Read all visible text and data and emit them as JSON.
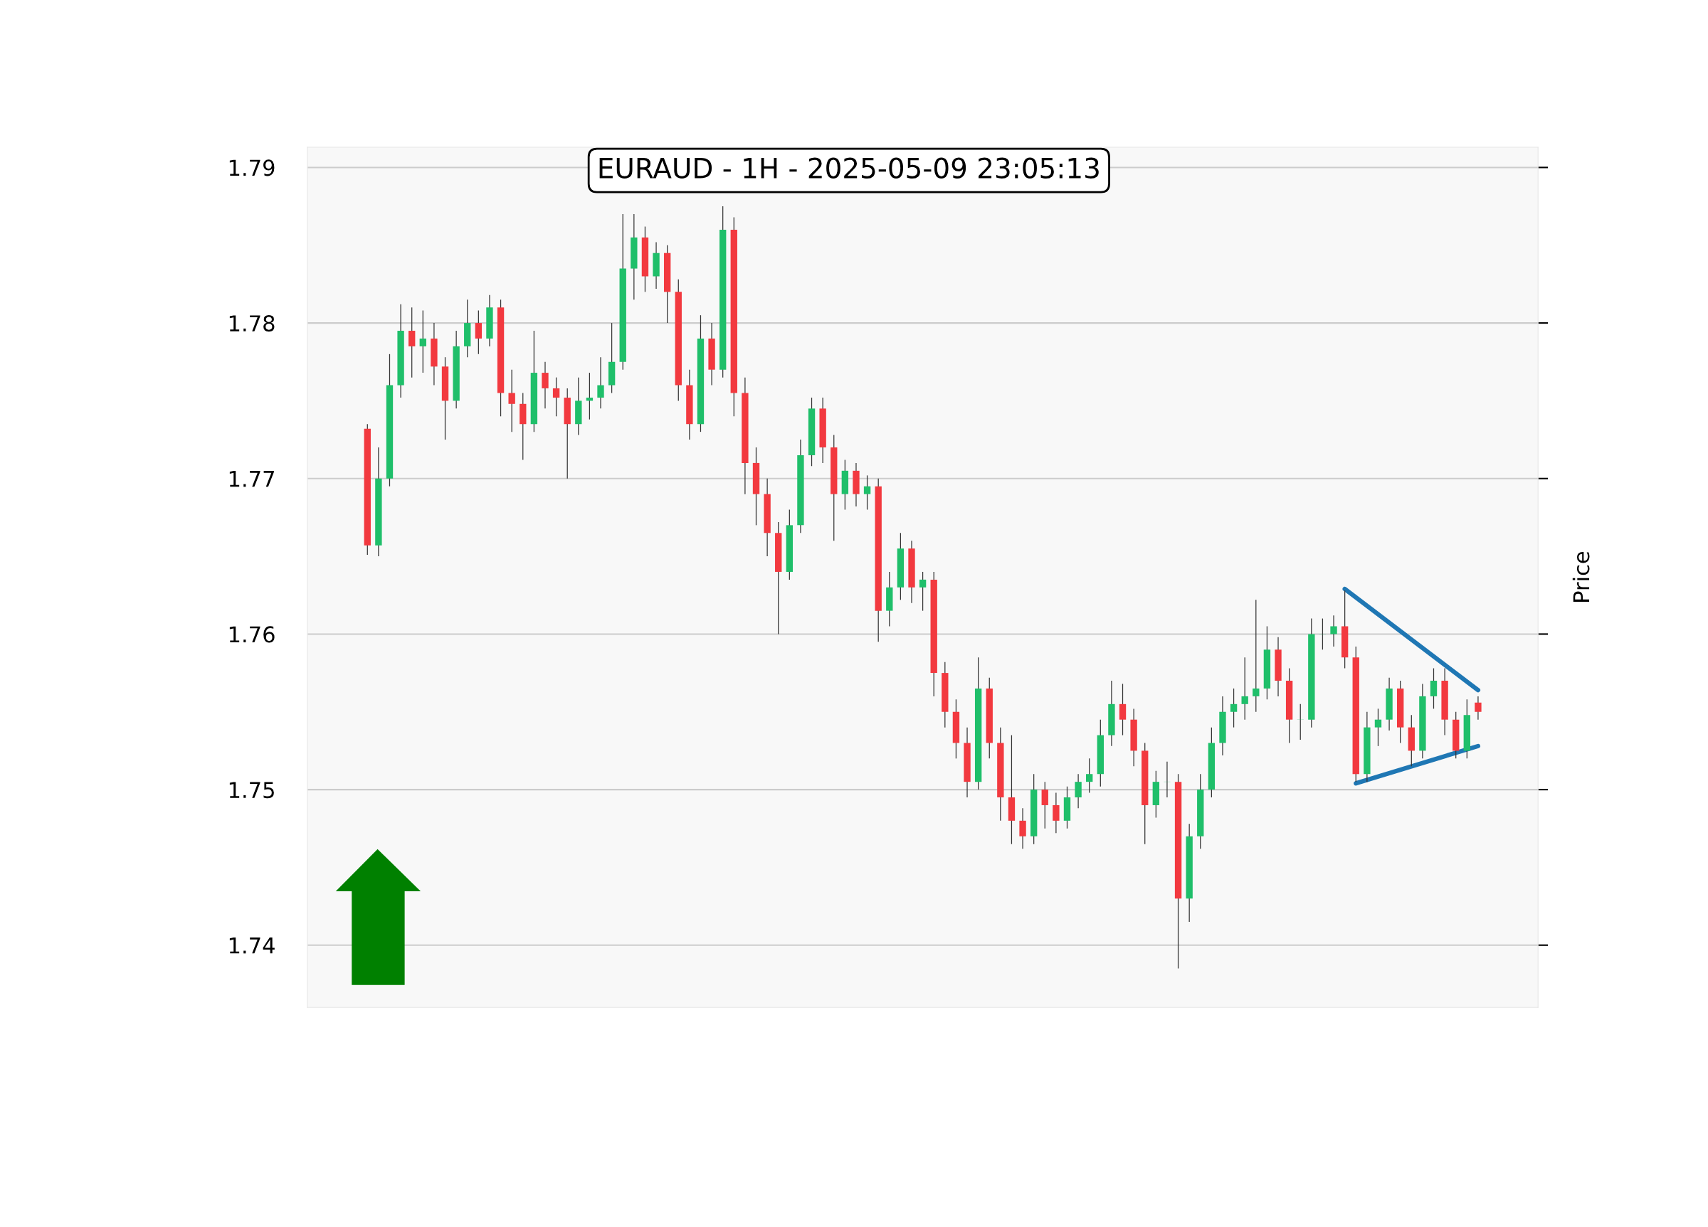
{
  "chart_data": {
    "type": "candlestick",
    "title": "EURAUD - 1H - 2025-05-09 23:05:13",
    "ylabel": "Price",
    "categories": [
      null,
      null,
      null,
      null,
      null,
      null,
      null,
      null,
      null,
      null,
      null,
      null,
      null,
      null,
      null,
      null,
      null,
      null,
      null,
      null,
      null,
      null,
      null,
      null,
      null,
      null,
      null,
      null,
      null,
      null,
      null,
      null,
      null,
      null,
      null,
      null,
      null,
      null,
      null,
      null,
      null,
      null,
      null,
      null,
      null,
      null,
      null,
      null,
      null,
      null,
      null,
      null,
      null,
      null,
      null,
      null,
      null,
      null,
      null,
      null,
      null,
      null,
      null,
      null,
      null,
      null,
      null,
      null,
      null,
      null,
      null,
      null,
      null,
      null,
      null,
      null,
      null,
      null,
      null,
      null,
      null,
      null,
      null,
      null,
      null,
      null,
      null,
      null,
      null,
      null,
      null,
      null,
      null,
      null,
      null,
      null,
      null,
      null,
      null,
      null,
      null
    ],
    "ohlc": [
      [
        1.7732,
        1.7735,
        1.7651,
        1.7657
      ],
      [
        1.7657,
        1.772,
        1.765,
        1.77
      ],
      [
        1.77,
        1.778,
        1.7695,
        1.776
      ],
      [
        1.776,
        1.7812,
        1.7752,
        1.7795
      ],
      [
        1.7795,
        1.781,
        1.7765,
        1.7785
      ],
      [
        1.7785,
        1.7808,
        1.7768,
        1.779
      ],
      [
        1.779,
        1.78,
        1.776,
        1.7772
      ],
      [
        1.7772,
        1.7778,
        1.7725,
        1.775
      ],
      [
        1.775,
        1.7795,
        1.7745,
        1.7785
      ],
      [
        1.7785,
        1.7815,
        1.7778,
        1.78
      ],
      [
        1.78,
        1.7808,
        1.778,
        1.779
      ],
      [
        1.779,
        1.7818,
        1.7785,
        1.781
      ],
      [
        1.781,
        1.7815,
        1.774,
        1.7755
      ],
      [
        1.7755,
        1.777,
        1.773,
        1.7748
      ],
      [
        1.7748,
        1.7755,
        1.7712,
        1.7735
      ],
      [
        1.7735,
        1.7795,
        1.773,
        1.7768
      ],
      [
        1.7768,
        1.7775,
        1.7745,
        1.7758
      ],
      [
        1.7758,
        1.7765,
        1.774,
        1.7752
      ],
      [
        1.7752,
        1.7758,
        1.77,
        1.7735
      ],
      [
        1.7735,
        1.7765,
        1.7728,
        1.775
      ],
      [
        1.775,
        1.7768,
        1.7738,
        1.7752
      ],
      [
        1.7752,
        1.7778,
        1.7745,
        1.776
      ],
      [
        1.776,
        1.78,
        1.7755,
        1.7775
      ],
      [
        1.7775,
        1.787,
        1.777,
        1.7835
      ],
      [
        1.7835,
        1.787,
        1.7815,
        1.7855
      ],
      [
        1.7855,
        1.7862,
        1.782,
        1.783
      ],
      [
        1.783,
        1.7852,
        1.7822,
        1.7845
      ],
      [
        1.7845,
        1.785,
        1.78,
        1.782
      ],
      [
        1.782,
        1.7828,
        1.775,
        1.776
      ],
      [
        1.776,
        1.777,
        1.7725,
        1.7735
      ],
      [
        1.7735,
        1.7805,
        1.773,
        1.779
      ],
      [
        1.779,
        1.78,
        1.776,
        1.777
      ],
      [
        1.777,
        1.7875,
        1.7765,
        1.786
      ],
      [
        1.786,
        1.7868,
        1.774,
        1.7755
      ],
      [
        1.7755,
        1.7765,
        1.769,
        1.771
      ],
      [
        1.771,
        1.772,
        1.767,
        1.769
      ],
      [
        1.769,
        1.77,
        1.765,
        1.7665
      ],
      [
        1.7665,
        1.7672,
        1.76,
        1.764
      ],
      [
        1.764,
        1.768,
        1.7635,
        1.767
      ],
      [
        1.767,
        1.7725,
        1.7665,
        1.7715
      ],
      [
        1.7715,
        1.7752,
        1.7708,
        1.7745
      ],
      [
        1.7745,
        1.7752,
        1.771,
        1.772
      ],
      [
        1.772,
        1.7728,
        1.766,
        1.769
      ],
      [
        1.769,
        1.7712,
        1.768,
        1.7705
      ],
      [
        1.7705,
        1.771,
        1.7682,
        1.769
      ],
      [
        1.769,
        1.7702,
        1.768,
        1.7695
      ],
      [
        1.7695,
        1.77,
        1.7595,
        1.7615
      ],
      [
        1.7615,
        1.764,
        1.7605,
        1.763
      ],
      [
        1.763,
        1.7665,
        1.7622,
        1.7655
      ],
      [
        1.7655,
        1.766,
        1.762,
        1.763
      ],
      [
        1.763,
        1.764,
        1.7615,
        1.7635
      ],
      [
        1.7635,
        1.764,
        1.756,
        1.7575
      ],
      [
        1.7575,
        1.7582,
        1.754,
        1.755
      ],
      [
        1.755,
        1.7558,
        1.752,
        1.753
      ],
      [
        1.753,
        1.754,
        1.7495,
        1.7505
      ],
      [
        1.7505,
        1.7585,
        1.75,
        1.7565
      ],
      [
        1.7565,
        1.7572,
        1.752,
        1.753
      ],
      [
        1.753,
        1.754,
        1.748,
        1.7495
      ],
      [
        1.7495,
        1.7535,
        1.7465,
        1.748
      ],
      [
        1.748,
        1.7488,
        1.7462,
        1.747
      ],
      [
        1.747,
        1.751,
        1.7465,
        1.75
      ],
      [
        1.75,
        1.7505,
        1.7475,
        1.749
      ],
      [
        1.749,
        1.7498,
        1.7472,
        1.748
      ],
      [
        1.748,
        1.7502,
        1.7475,
        1.7495
      ],
      [
        1.7495,
        1.751,
        1.7488,
        1.7505
      ],
      [
        1.7505,
        1.752,
        1.7498,
        1.751
      ],
      [
        1.751,
        1.7545,
        1.7502,
        1.7535
      ],
      [
        1.7535,
        1.757,
        1.7528,
        1.7555
      ],
      [
        1.7555,
        1.7568,
        1.7535,
        1.7545
      ],
      [
        1.7545,
        1.7552,
        1.7515,
        1.7525
      ],
      [
        1.7525,
        1.753,
        1.7465,
        1.749
      ],
      [
        1.749,
        1.7512,
        1.7482,
        1.7505
      ],
      [
        1.7505,
        1.7518,
        1.7495,
        1.7505
      ],
      [
        1.7505,
        1.751,
        1.7385,
        1.743
      ],
      [
        1.743,
        1.7478,
        1.7415,
        1.747
      ],
      [
        1.747,
        1.751,
        1.7462,
        1.75
      ],
      [
        1.75,
        1.754,
        1.7495,
        1.753
      ],
      [
        1.753,
        1.756,
        1.7522,
        1.755
      ],
      [
        1.755,
        1.7565,
        1.754,
        1.7555
      ],
      [
        1.7555,
        1.7585,
        1.7545,
        1.756
      ],
      [
        1.756,
        1.7622,
        1.755,
        1.7565
      ],
      [
        1.7565,
        1.7605,
        1.7558,
        1.759
      ],
      [
        1.759,
        1.7598,
        1.756,
        1.757
      ],
      [
        1.757,
        1.7578,
        1.753,
        1.7545
      ],
      [
        1.7545,
        1.7555,
        1.7532,
        1.7545
      ],
      [
        1.7545,
        1.761,
        1.754,
        1.76
      ],
      [
        1.76,
        1.761,
        1.759,
        1.76
      ],
      [
        1.76,
        1.7612,
        1.7592,
        1.7605
      ],
      [
        1.7605,
        1.7628,
        1.7578,
        1.7585
      ],
      [
        1.7585,
        1.7592,
        1.7505,
        1.751
      ],
      [
        1.751,
        1.755,
        1.7505,
        1.754
      ],
      [
        1.754,
        1.7552,
        1.7528,
        1.7545
      ],
      [
        1.7545,
        1.7572,
        1.7538,
        1.7565
      ],
      [
        1.7565,
        1.757,
        1.753,
        1.754
      ],
      [
        1.754,
        1.7548,
        1.7515,
        1.7525
      ],
      [
        1.7525,
        1.7568,
        1.752,
        1.756
      ],
      [
        1.756,
        1.7578,
        1.7552,
        1.757
      ],
      [
        1.757,
        1.7578,
        1.7535,
        1.7545
      ],
      [
        1.7545,
        1.755,
        1.752,
        1.7525
      ],
      [
        1.7525,
        1.7558,
        1.752,
        1.7548
      ],
      [
        1.7556,
        1.756,
        1.7545,
        1.755
      ]
    ],
    "series": [
      {
        "type": "line",
        "color": "#1f77b4",
        "values": [
          null,
          null,
          null,
          null,
          null,
          null,
          null,
          null,
          null,
          null,
          null,
          null,
          null,
          null,
          null,
          null,
          null,
          null,
          null,
          null,
          null,
          null,
          null,
          null,
          null,
          null,
          null,
          null,
          null,
          null,
          null,
          null,
          null,
          null,
          null,
          null,
          null,
          null,
          null,
          null,
          null,
          null,
          null,
          null,
          null,
          null,
          null,
          null,
          null,
          null,
          null,
          null,
          null,
          null,
          null,
          null,
          null,
          null,
          null,
          null,
          null,
          null,
          null,
          null,
          null,
          null,
          null,
          null,
          null,
          null,
          null,
          null,
          null,
          null,
          null,
          null,
          null,
          null,
          null,
          null,
          null,
          null,
          null,
          null,
          null,
          null,
          null,
          null,
          1.7629,
          null,
          null,
          null,
          null,
          null,
          null,
          null,
          null,
          null,
          null,
          null,
          1.7564
        ]
      },
      {
        "type": "line",
        "color": "#1f77b4",
        "values": [
          null,
          null,
          null,
          null,
          null,
          null,
          null,
          null,
          null,
          null,
          null,
          null,
          null,
          null,
          null,
          null,
          null,
          null,
          null,
          null,
          null,
          null,
          null,
          null,
          null,
          null,
          null,
          null,
          null,
          null,
          null,
          null,
          null,
          null,
          null,
          null,
          null,
          null,
          null,
          null,
          null,
          null,
          null,
          null,
          null,
          null,
          null,
          null,
          null,
          null,
          null,
          null,
          null,
          null,
          null,
          null,
          null,
          null,
          null,
          null,
          null,
          null,
          null,
          null,
          null,
          null,
          null,
          null,
          null,
          null,
          null,
          null,
          null,
          null,
          null,
          null,
          null,
          null,
          null,
          null,
          null,
          null,
          null,
          null,
          null,
          null,
          null,
          null,
          null,
          1.7504,
          null,
          null,
          null,
          null,
          null,
          null,
          null,
          null,
          null,
          null,
          1.7528
        ]
      }
    ],
    "ylim": [
      1.736,
      1.7913
    ],
    "yticks": [
      1.74,
      1.75,
      1.76,
      1.77,
      1.78,
      1.79
    ],
    "grid": "y",
    "tick_labels": "y"
  }
}
